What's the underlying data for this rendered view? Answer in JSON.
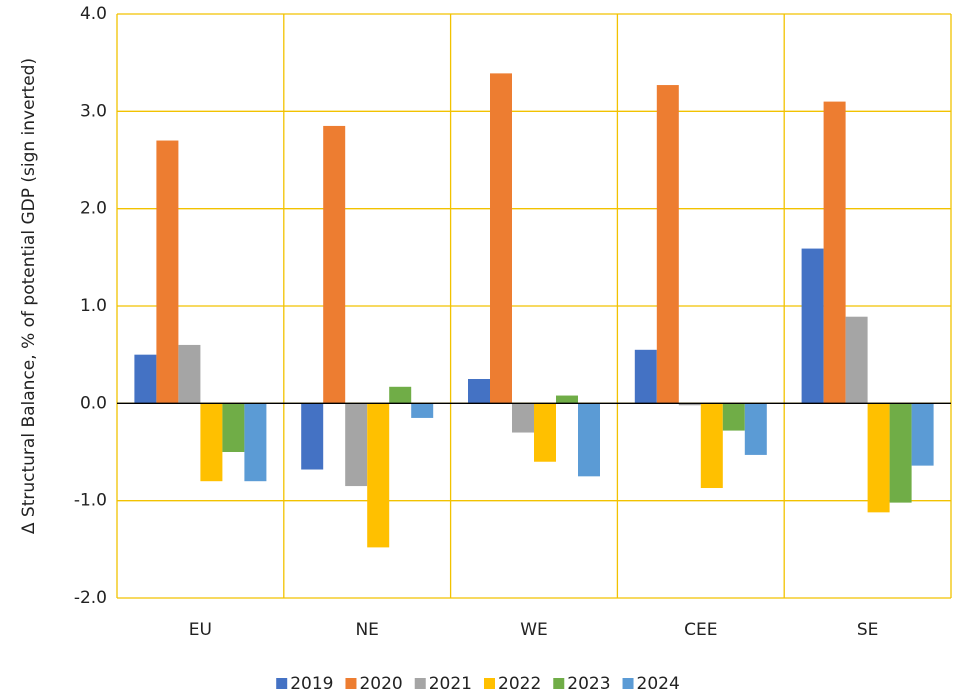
{
  "chart_data": {
    "type": "bar",
    "y_label": "Δ Structural Balance, % of potential GDP (sign inverted)",
    "categories": [
      "EU",
      "NE",
      "WE",
      "CEE",
      "SE"
    ],
    "series": [
      {
        "name": "2019",
        "color": "#4472c4",
        "values": [
          0.5,
          -0.68,
          0.25,
          0.55,
          1.59
        ]
      },
      {
        "name": "2020",
        "color": "#ed7d31",
        "values": [
          2.7,
          2.85,
          3.39,
          3.27,
          3.1
        ]
      },
      {
        "name": "2021",
        "color": "#a5a5a5",
        "values": [
          0.6,
          -0.85,
          -0.3,
          -0.02,
          0.89
        ]
      },
      {
        "name": "2022",
        "color": "#ffc000",
        "values": [
          -0.8,
          -1.48,
          -0.6,
          -0.87,
          -1.12
        ]
      },
      {
        "name": "2023",
        "color": "#70ad47",
        "values": [
          -0.5,
          0.17,
          0.08,
          -0.28,
          -1.02
        ]
      },
      {
        "name": "2024",
        "color": "#5b9bd5",
        "values": [
          -0.8,
          -0.15,
          -0.75,
          -0.53,
          -0.64
        ]
      }
    ],
    "ylim": [
      -2,
      4
    ],
    "yticks": [
      {
        "value": -2,
        "label": "-2.0"
      },
      {
        "value": -1,
        "label": "-1.0"
      },
      {
        "value": 0,
        "label": "0.0"
      },
      {
        "value": 1,
        "label": "1.0"
      },
      {
        "value": 2,
        "label": "2.0"
      },
      {
        "value": 3,
        "label": "3.0"
      },
      {
        "value": 4,
        "label": "4.0"
      }
    ],
    "grid": true,
    "grid_color": "#f2c200",
    "legend": "bottom"
  }
}
